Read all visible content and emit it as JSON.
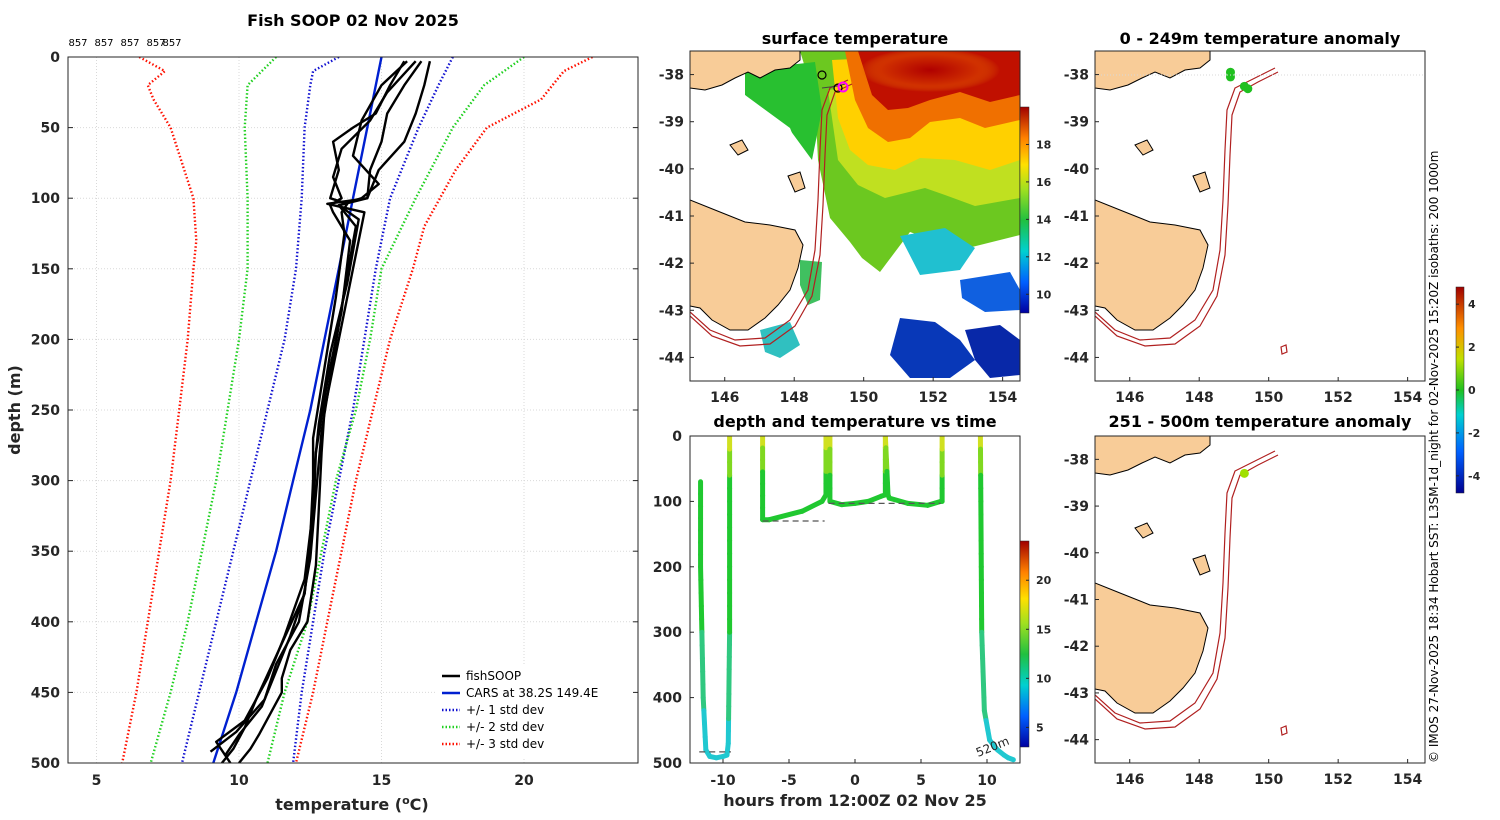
{
  "side_note": "© IMOS 27-Nov-2025 18:34 Hobart SST: L3SM-1d_night for 02-Nov-2025 15:20Z isobaths: 200 1000m",
  "colors": {
    "fishsoop": "#000000",
    "cars": "#0020d0",
    "std1": "#1010d0",
    "std2": "#20d020",
    "std3": "#ff1000",
    "land": "#f8cc98",
    "isobath": "#b02020"
  },
  "chart_data": [
    {
      "id": "profile",
      "type": "line",
      "title": "Fish SOOP 02 Nov 2025",
      "top_labels": [
        "857",
        "857",
        "857",
        "857",
        "857"
      ],
      "xlabel": "temperature (",
      "xlabel_sup": "o",
      "xlabel_unit": "C)",
      "ylabel": "depth (m)",
      "xlim": [
        4,
        24
      ],
      "ylim": [
        0,
        500
      ],
      "x_ticks": [
        5,
        10,
        15,
        20
      ],
      "y_ticks": [
        0,
        50,
        100,
        150,
        200,
        250,
        300,
        350,
        400,
        450,
        500
      ],
      "legend": {
        "position": "bottom-right",
        "entries": [
          "fishSOOP",
          "CARS at 38.2S 149.4E",
          "+/- 1 std dev",
          "+/- 2 std dev",
          "+/- 3 std dev"
        ]
      },
      "series": [
        {
          "name": "CARS at 38.2S 149.4E",
          "style": "solid",
          "color": "#0020d0",
          "depth": [
            0,
            20,
            50,
            100,
            150,
            200,
            250,
            300,
            350,
            400,
            450,
            500
          ],
          "temp": [
            15.0,
            14.8,
            14.5,
            14.0,
            13.5,
            13.0,
            12.5,
            11.9,
            11.3,
            10.6,
            9.9,
            9.1
          ]
        },
        {
          "name": "-1 std dev",
          "style": "dotted",
          "color": "#1010d0",
          "depth": [
            0,
            10,
            20,
            50,
            100,
            150,
            200,
            250,
            300,
            350,
            400,
            450,
            500
          ],
          "temp": [
            13.5,
            12.6,
            12.5,
            12.3,
            12.2,
            12.0,
            11.6,
            11.0,
            10.4,
            9.8,
            9.2,
            8.6,
            8.0
          ]
        },
        {
          "name": "+1 std dev",
          "style": "dotted",
          "color": "#1010d0",
          "depth": [
            0,
            20,
            50,
            100,
            150,
            200,
            250,
            300,
            350,
            400,
            450,
            500
          ],
          "temp": [
            17.5,
            17.0,
            16.3,
            15.3,
            14.8,
            14.4,
            14.0,
            13.5,
            13.0,
            12.6,
            12.2,
            11.9
          ]
        },
        {
          "name": "-2 std dev",
          "style": "dotted",
          "color": "#20d020",
          "depth": [
            0,
            10,
            20,
            50,
            100,
            150,
            200,
            250,
            300,
            350,
            400,
            450,
            500
          ],
          "temp": [
            11.3,
            10.8,
            10.3,
            10.2,
            10.3,
            10.3,
            10.0,
            9.6,
            9.2,
            8.7,
            8.2,
            7.6,
            6.9
          ]
        },
        {
          "name": "+2 std dev",
          "style": "dotted",
          "color": "#20d020",
          "depth": [
            0,
            20,
            50,
            100,
            150,
            200,
            250,
            300,
            350,
            400,
            450,
            500
          ],
          "temp": [
            20.0,
            18.6,
            17.5,
            16.2,
            15.0,
            14.6,
            14.1,
            13.4,
            12.9,
            12.4,
            11.6,
            11.0
          ]
        },
        {
          "name": "-3 std dev",
          "style": "dotted",
          "color": "#ff1000",
          "depth": [
            0,
            10,
            20,
            30,
            50,
            100,
            130,
            150,
            200,
            250,
            300,
            350,
            400,
            450,
            500
          ],
          "temp": [
            6.5,
            7.4,
            6.8,
            7.0,
            7.6,
            8.4,
            8.5,
            8.4,
            8.2,
            7.9,
            7.6,
            7.2,
            6.8,
            6.4,
            5.9
          ]
        },
        {
          "name": "+3 std dev",
          "style": "dotted",
          "color": "#ff1000",
          "depth": [
            0,
            10,
            30,
            50,
            80,
            120,
            150,
            200,
            250,
            300,
            350,
            400,
            450,
            500
          ],
          "temp": [
            22.4,
            21.4,
            20.6,
            18.7,
            17.6,
            16.5,
            16.1,
            15.3,
            14.7,
            14.1,
            13.6,
            13.1,
            12.6,
            12.0
          ]
        },
        {
          "name": "fishSOOP cast 1",
          "style": "solid",
          "color": "#000000",
          "depth": [
            3,
            20,
            40,
            60,
            80,
            100,
            104,
            110,
            150,
            200,
            250,
            280,
            320,
            360,
            400,
            420,
            440,
            450,
            480,
            490,
            500
          ],
          "temp": [
            16.4,
            15.8,
            15.2,
            15.0,
            14.6,
            14.5,
            13.1,
            14.4,
            14.0,
            13.5,
            13.0,
            12.9,
            12.8,
            12.7,
            12.4,
            11.8,
            11.5,
            11.5,
            10.7,
            10.4,
            10.0
          ]
        },
        {
          "name": "fishSOOP cast 2",
          "style": "solid",
          "color": "#000000",
          "depth": [
            3,
            20,
            40,
            60,
            80,
            100,
            105,
            115,
            160,
            210,
            260,
            300,
            340,
            380,
            410,
            440,
            460,
            480,
            495
          ],
          "temp": [
            16.7,
            16.5,
            16.2,
            15.8,
            14.9,
            14.5,
            13.5,
            14.2,
            13.8,
            13.2,
            12.8,
            12.6,
            12.5,
            12.3,
            11.8,
            11.2,
            10.8,
            10.0,
            9.5
          ]
        },
        {
          "name": "fishSOOP cast 3",
          "style": "solid",
          "color": "#000000",
          "depth": [
            3,
            25,
            45,
            65,
            85,
            100,
            105,
            110,
            130,
            180,
            230,
            280,
            330,
            380,
            420,
            455,
            475,
            490,
            500
          ],
          "temp": [
            16.2,
            15.2,
            14.6,
            13.6,
            13.3,
            13.6,
            13.2,
            13.3,
            13.9,
            13.6,
            13.1,
            12.7,
            12.6,
            12.3,
            11.4,
            10.6,
            10.2,
            9.8,
            9.4
          ]
        },
        {
          "name": "fishSOOP cast 4",
          "style": "solid",
          "color": "#000000",
          "depth": [
            3,
            20,
            40,
            50,
            60,
            80,
            100,
            104,
            110,
            125,
            170,
            220,
            270,
            320,
            370,
            410,
            440,
            470,
            485,
            500
          ],
          "temp": [
            15.8,
            15.3,
            14.8,
            14.0,
            13.3,
            13.5,
            13.2,
            13.8,
            13.6,
            13.7,
            13.4,
            13.0,
            12.6,
            12.6,
            12.3,
            11.6,
            11.0,
            10.2,
            9.2,
            9.7
          ]
        },
        {
          "name": "fishSOOP cast 5",
          "style": "solid",
          "color": "#000000",
          "depth": [
            3,
            20,
            45,
            70,
            90,
            100,
            105,
            120,
            165,
            215,
            265,
            310,
            355,
            400,
            430,
            455,
            478,
            492
          ],
          "temp": [
            15.9,
            15.0,
            14.3,
            14.0,
            14.9,
            14.3,
            13.5,
            14.1,
            13.7,
            13.3,
            12.9,
            12.7,
            12.5,
            12.1,
            11.3,
            10.9,
            9.9,
            9.0
          ]
        }
      ]
    },
    {
      "id": "sst_map",
      "type": "heatmap",
      "title": "surface temperature",
      "x_ticks": [
        146,
        148,
        150,
        152,
        154
      ],
      "y_ticks": [
        -38,
        -39,
        -40,
        -41,
        -42,
        -43,
        -44
      ],
      "xlim": [
        145,
        154.5
      ],
      "ylim": [
        -44.5,
        -37.5
      ],
      "colorbar_ticks": [
        10,
        12,
        14,
        16,
        18
      ],
      "colorbar_range": [
        9,
        20
      ]
    },
    {
      "id": "timeline",
      "type": "line",
      "title": "depth and temperature vs time",
      "xlabel": "hours from 12:00Z 02 Nov 25",
      "x_ticks": [
        -10,
        -5,
        0,
        5,
        10
      ],
      "y_ticks": [
        0,
        100,
        200,
        300,
        400,
        500
      ],
      "xlim": [
        -12.5,
        12.5
      ],
      "ylim": [
        0,
        500
      ],
      "annotation": "520m",
      "colorbar_ticks": [
        5,
        10,
        15,
        20
      ],
      "colorbar_range": [
        3,
        24
      ],
      "segments": [
        {
          "t": [
            -11.7,
            -11.7,
            -11.5,
            -11.3,
            -11.0,
            -10.5,
            -10.0,
            -9.7,
            -9.6,
            -9.5,
            -9.5
          ],
          "d": [
            70,
            200,
            400,
            480,
            490,
            492,
            490,
            488,
            470,
            300,
            0
          ]
        },
        {
          "t": [
            -7.0,
            -7.0,
            -6.5,
            -4.0,
            -2.5,
            -2.2,
            -2.2,
            -1.9,
            -1.9
          ],
          "d": [
            0,
            128,
            128,
            115,
            100,
            90,
            0,
            0,
            100
          ]
        },
        {
          "t": [
            -1.9,
            -1.0,
            0.0,
            1.0,
            2.0,
            2.3,
            2.3,
            2.5,
            2.6,
            4.0,
            5.5,
            6.5,
            6.6,
            6.6
          ],
          "d": [
            100,
            105,
            103,
            100,
            92,
            90,
            0,
            90,
            95,
            103,
            106,
            100,
            100,
            0
          ]
        },
        {
          "t": [
            9.5,
            9.6,
            9.8,
            10.2,
            10.8,
            11.3,
            11.6,
            12.0
          ],
          "d": [
            0,
            300,
            420,
            465,
            480,
            488,
            492,
            495
          ]
        }
      ],
      "bottom_markers": [
        {
          "t0": -11.8,
          "t1": -9.4,
          "d": 483
        },
        {
          "t0": -7.0,
          "t1": -2.3,
          "d": 130
        },
        {
          "t0": -2.0,
          "t1": 6.5,
          "d": 103
        }
      ]
    },
    {
      "id": "anomaly_0_249",
      "type": "scatter",
      "title": "0 - 249m temperature anomaly",
      "x_ticks": [
        146,
        148,
        150,
        152,
        154
      ],
      "y_ticks": [
        -38,
        -39,
        -40,
        -41,
        -42,
        -43,
        -44
      ],
      "xlim": [
        145,
        154.5
      ],
      "ylim": [
        -44.5,
        -37.5
      ],
      "points": [
        {
          "lon": 148.9,
          "lat": -37.95,
          "anom": 0.3
        },
        {
          "lon": 148.9,
          "lat": -38.05,
          "anom": 0.2
        },
        {
          "lon": 149.3,
          "lat": -38.25,
          "anom": 0.5
        },
        {
          "lon": 149.4,
          "lat": -38.3,
          "anom": 0.4
        }
      ]
    },
    {
      "id": "anomaly_251_500",
      "type": "scatter",
      "title": "251 - 500m temperature anomaly",
      "x_ticks": [
        146,
        148,
        150,
        152,
        154
      ],
      "y_ticks": [
        -38,
        -39,
        -40,
        -41,
        -42,
        -43,
        -44
      ],
      "xlim": [
        145,
        154.5
      ],
      "ylim": [
        -44.5,
        -37.5
      ],
      "colorbar_ticks": [
        -4,
        -2,
        0,
        2,
        4
      ],
      "colorbar_range": [
        -4.8,
        4.8
      ],
      "points": [
        {
          "lon": 149.3,
          "lat": -38.3,
          "anom": 1.2
        }
      ]
    }
  ]
}
